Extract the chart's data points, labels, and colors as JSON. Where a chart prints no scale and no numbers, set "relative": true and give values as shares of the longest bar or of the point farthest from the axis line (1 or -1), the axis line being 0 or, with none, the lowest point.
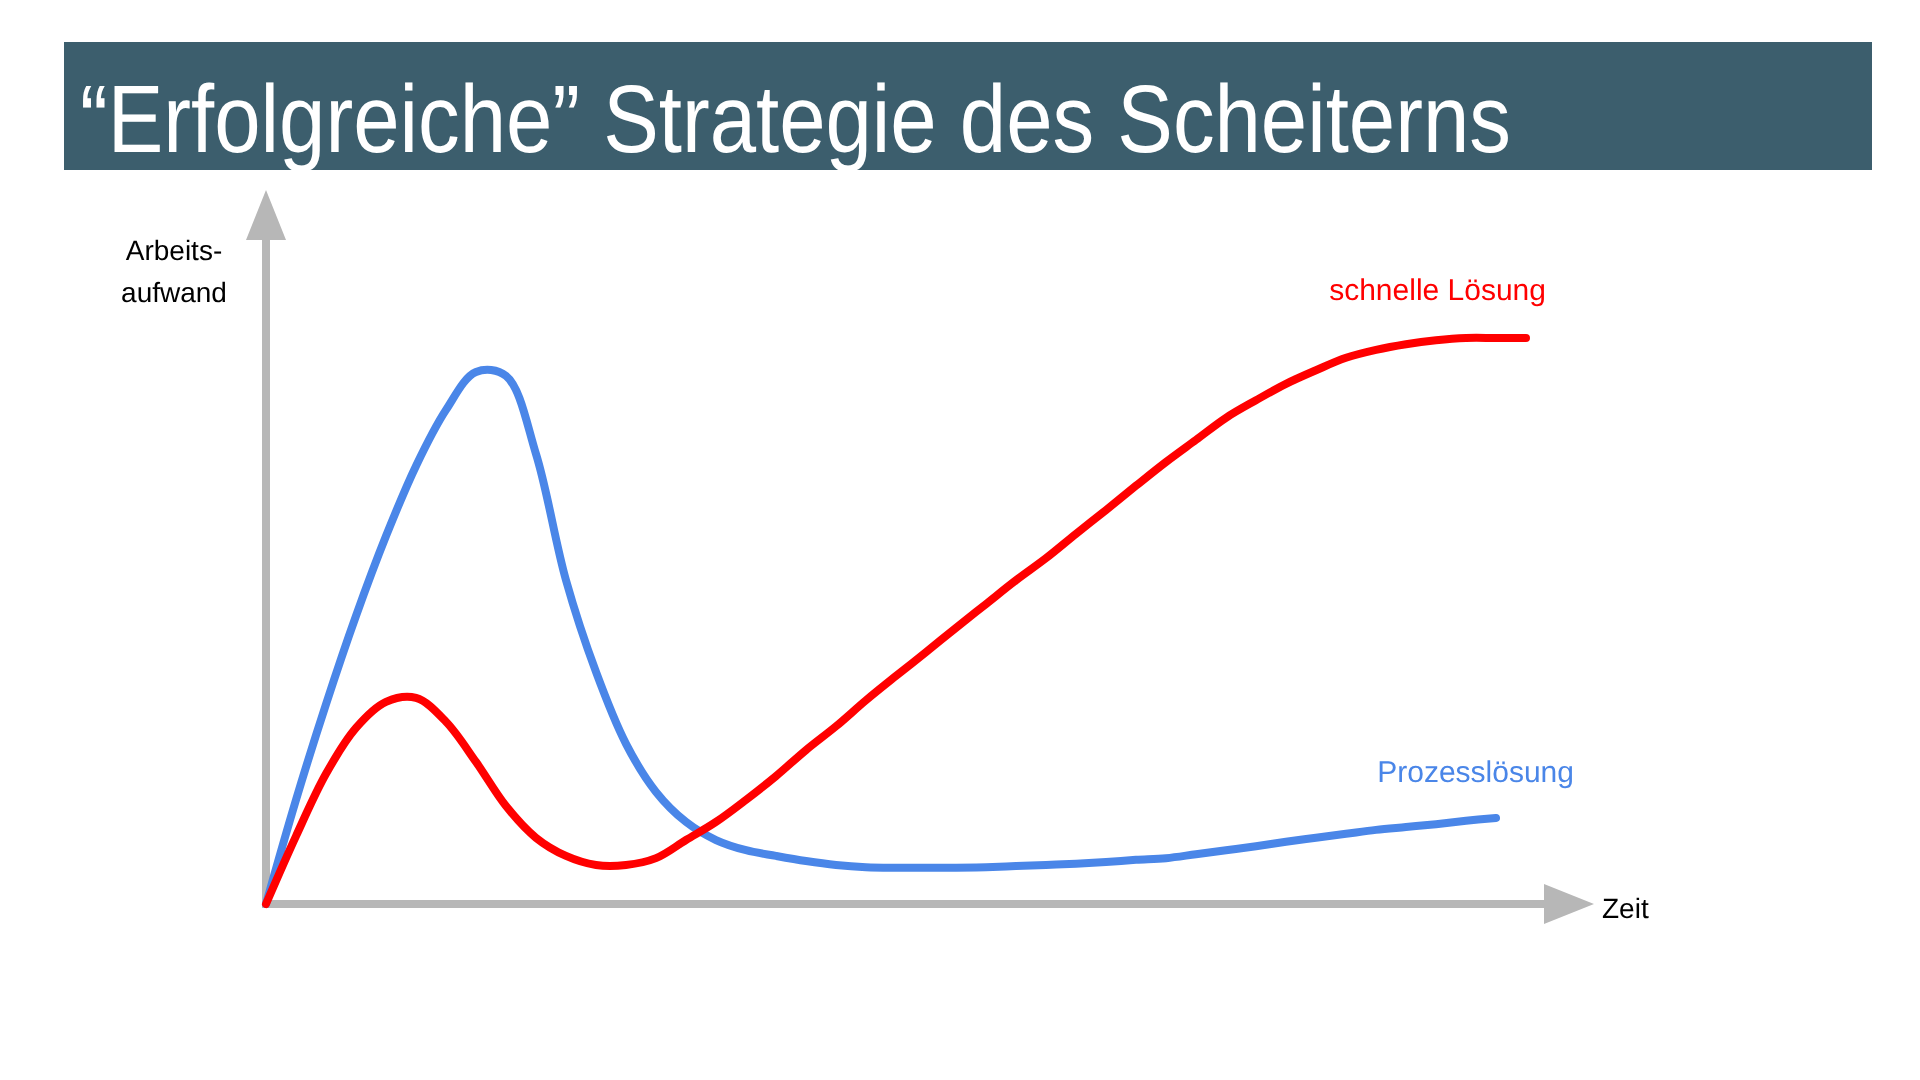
{
  "chart_data": {
    "type": "line",
    "title": "“Erfolgreiche” Strategie des Scheiterns",
    "xlabel": "Zeit",
    "ylabel": "Arbeits-\naufwand",
    "relative": true,
    "line_style": "solid",
    "categories": [
      null,
      null,
      null,
      null,
      null,
      null,
      null,
      null,
      null,
      null,
      null,
      null,
      null,
      null,
      null,
      null,
      null,
      null,
      null,
      null,
      null,
      null,
      null,
      null,
      null,
      null,
      null,
      null,
      null,
      null,
      null,
      null,
      null,
      null,
      null,
      null,
      null,
      null,
      null,
      null,
      null,
      null,
      null
    ],
    "series": [
      {
        "name": "Prozesslösung",
        "color": "#4a86e8",
        "values": [
          0,
          0.184,
          0.353,
          0.509,
          0.65,
          0.774,
          0.873,
          0.94,
          0.933,
          0.795,
          0.572,
          0.41,
          0.283,
          0.198,
          0.145,
          0.113,
          0.095,
          0.085,
          0.076,
          0.069,
          0.065,
          0.064,
          0.064,
          0.064,
          0.065,
          0.067,
          0.069,
          0.071,
          0.074,
          0.078,
          0.081,
          0.088,
          0.095,
          0.102,
          0.11,
          0.117,
          0.124,
          0.131,
          0.136,
          0.141,
          0.147,
          0.152,
          null
        ]
      },
      {
        "name": "schnelle Lösung",
        "color": "#ff0000",
        "values": [
          0,
          0.12,
          0.23,
          0.311,
          0.357,
          0.364,
          0.322,
          0.251,
          0.173,
          0.117,
          0.085,
          0.069,
          0.069,
          0.081,
          0.113,
          0.145,
          0.184,
          0.226,
          0.272,
          0.314,
          0.36,
          0.403,
          0.445,
          0.488,
          0.53,
          0.572,
          0.611,
          0.654,
          0.696,
          0.739,
          0.781,
          0.82,
          0.859,
          0.89,
          0.919,
          0.943,
          0.965,
          0.979,
          0.989,
          0.996,
          1,
          1,
          1
        ]
      }
    ]
  }
}
